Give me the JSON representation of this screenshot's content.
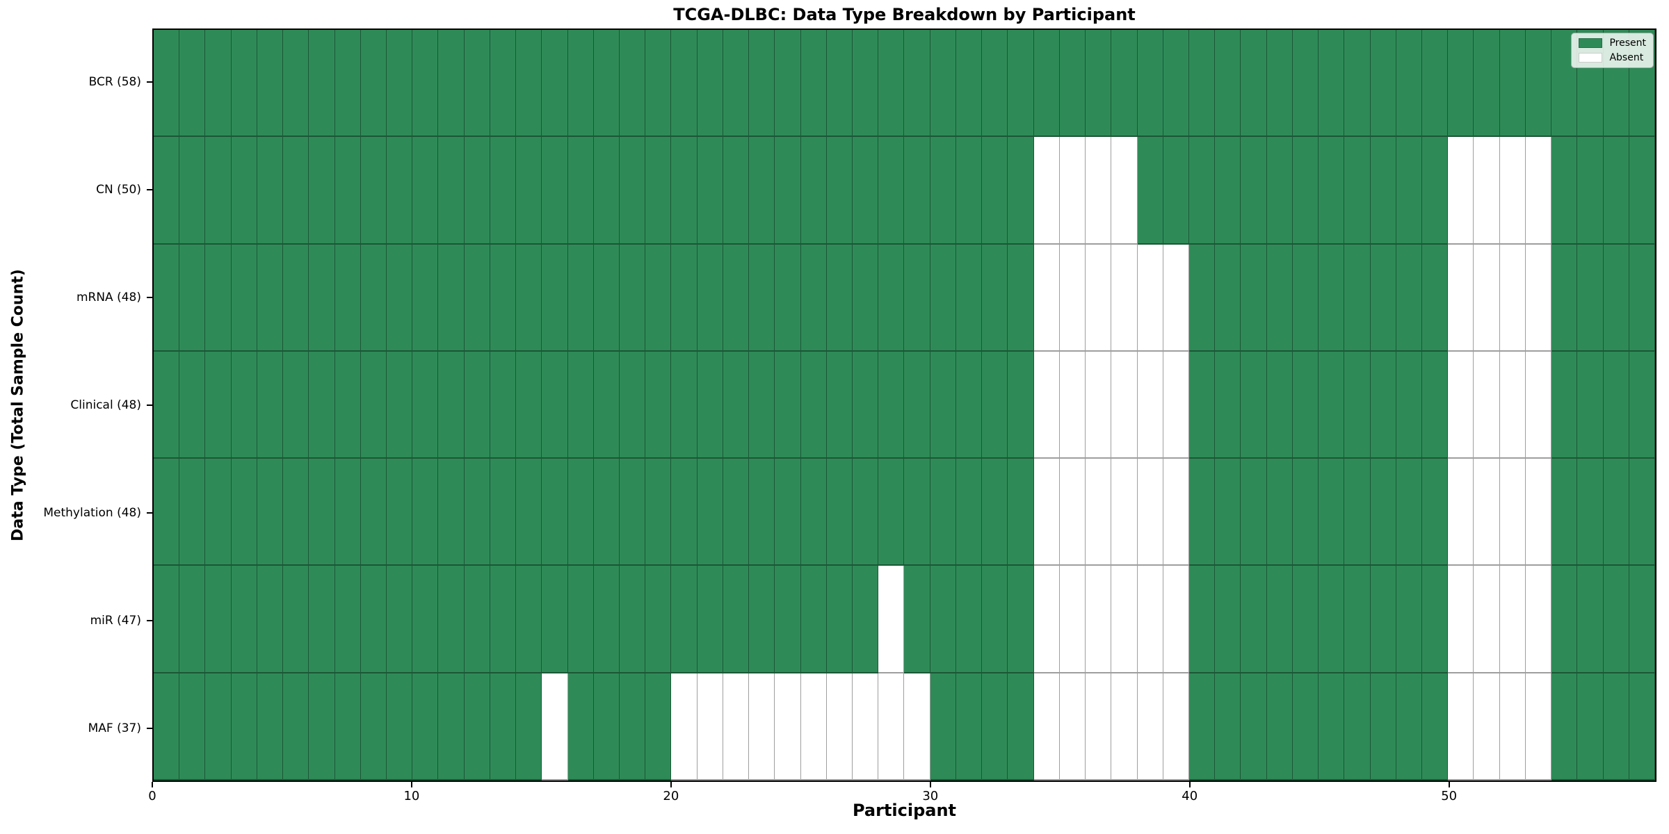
{
  "figure": {
    "title": "TCGA-DLBC: Data Type Breakdown by Participant",
    "xlabel": "Participant",
    "ylabel": "Data Type (Total Sample Count)"
  },
  "legend": {
    "items": [
      {
        "label": "Present",
        "color": "#2E8B57"
      },
      {
        "label": "Absent",
        "color": "#FFFFFF"
      }
    ]
  },
  "chart_data": {
    "type": "heatmap",
    "title": "TCGA-DLBC: Data Type Breakdown by Participant",
    "xlabel": "Participant",
    "ylabel": "Data Type (Total Sample Count)",
    "x_ticks": [
      0,
      10,
      20,
      30,
      40,
      50
    ],
    "x_range": [
      0,
      58
    ],
    "n_participants": 58,
    "grid": true,
    "legend_position": "upper right",
    "colors": {
      "present": "#2E8B57",
      "absent": "#FFFFFF",
      "gridline": "rgba(0,0,0,0.38)"
    },
    "value_encoding": {
      "present": 1,
      "absent": 0
    },
    "rows": [
      {
        "label": "BCR (58)",
        "data_type": "BCR",
        "total_samples": 58,
        "absent_participants": []
      },
      {
        "label": "CN (50)",
        "data_type": "CN",
        "total_samples": 50,
        "absent_participants": [
          34,
          35,
          36,
          37,
          50,
          51,
          52,
          53
        ]
      },
      {
        "label": "mRNA (48)",
        "data_type": "mRNA",
        "total_samples": 48,
        "absent_participants": [
          34,
          35,
          36,
          37,
          38,
          39,
          50,
          51,
          52,
          53
        ]
      },
      {
        "label": "Clinical (48)",
        "data_type": "Clinical",
        "total_samples": 48,
        "absent_participants": [
          34,
          35,
          36,
          37,
          38,
          39,
          50,
          51,
          52,
          53
        ]
      },
      {
        "label": "Methylation (48)",
        "data_type": "Methylation",
        "total_samples": 48,
        "absent_participants": [
          34,
          35,
          36,
          37,
          38,
          39,
          50,
          51,
          52,
          53
        ]
      },
      {
        "label": "miR (47)",
        "data_type": "miR",
        "total_samples": 47,
        "absent_participants": [
          28,
          34,
          35,
          36,
          37,
          38,
          39,
          50,
          51,
          52,
          53
        ]
      },
      {
        "label": "MAF (37)",
        "data_type": "MAF",
        "total_samples": 37,
        "absent_participants": [
          15,
          20,
          21,
          22,
          23,
          24,
          25,
          26,
          27,
          28,
          29,
          34,
          35,
          36,
          37,
          38,
          39,
          50,
          51,
          52,
          53
        ]
      }
    ]
  }
}
